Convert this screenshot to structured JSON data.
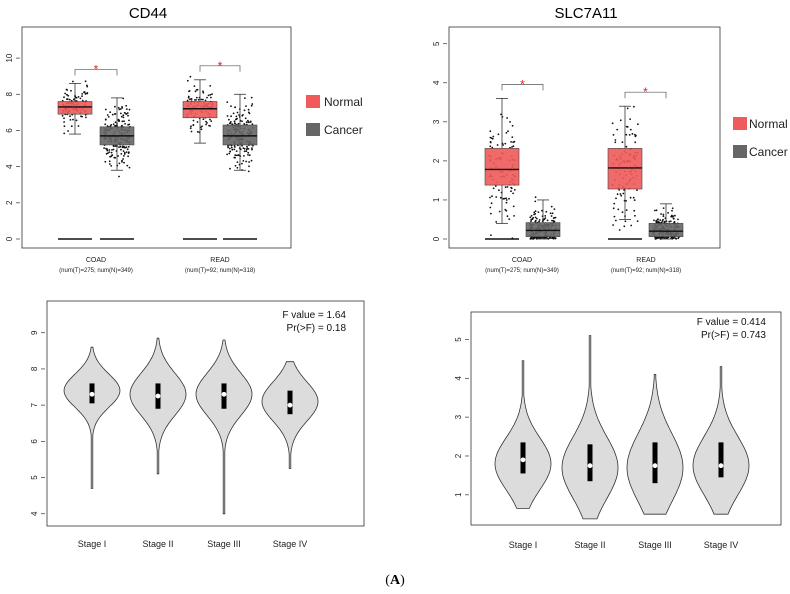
{
  "caption": {
    "open": "(",
    "letter": "A",
    "close": ")"
  },
  "colors": {
    "normal": "#f05a5a",
    "cancer": "#666666",
    "star": "#e02020",
    "violin": "#dcdcdc"
  },
  "chart_data": [
    {
      "type": "boxplot",
      "title": "CD44",
      "ylim": [
        0,
        11
      ],
      "yticks": [
        0,
        2,
        4,
        6,
        8,
        10
      ],
      "legend": [
        {
          "label": "Normal",
          "color": "#f05a5a"
        },
        {
          "label": "Cancer",
          "color": "#666666"
        }
      ],
      "legend_position": "right",
      "significance_marker": "*",
      "categories": [
        {
          "name": "COAD",
          "sub": "(num(T)=275; num(N)=349)",
          "normal": {
            "q1": 6.9,
            "median": 7.3,
            "q3": 7.6,
            "low": 5.8,
            "high": 8.6
          },
          "cancer": {
            "q1": 5.2,
            "median": 5.7,
            "q3": 6.2,
            "low": 3.8,
            "high": 7.8
          }
        },
        {
          "name": "READ",
          "sub": "(num(T)=92; num(N)=318)",
          "normal": {
            "q1": 6.7,
            "median": 7.2,
            "q3": 7.6,
            "low": 5.3,
            "high": 8.8
          },
          "cancer": {
            "q1": 5.2,
            "median": 5.7,
            "q3": 6.3,
            "low": 3.8,
            "high": 8.0
          }
        }
      ]
    },
    {
      "type": "boxplot",
      "title": "SLC7A11",
      "ylim": [
        0,
        5.3
      ],
      "yticks": [
        0,
        1,
        2,
        3,
        4,
        5
      ],
      "legend": [
        {
          "label": "Normal",
          "color": "#f05a5a"
        },
        {
          "label": "Cancer",
          "color": "#666666"
        }
      ],
      "legend_position": "right",
      "significance_marker": "*",
      "categories": [
        {
          "name": "COAD",
          "sub": "(num(T)=275; num(N)=349)",
          "normal": {
            "q1": 1.38,
            "median": 1.78,
            "q3": 2.32,
            "low": 0.4,
            "high": 3.6
          },
          "cancer": {
            "q1": 0.06,
            "median": 0.22,
            "q3": 0.42,
            "low": 0.0,
            "high": 1.0
          }
        },
        {
          "name": "READ",
          "sub": "(num(T)=92; num(N)=318)",
          "normal": {
            "q1": 1.28,
            "median": 1.82,
            "q3": 2.32,
            "low": 0.5,
            "high": 3.4
          },
          "cancer": {
            "q1": 0.06,
            "median": 0.2,
            "q3": 0.4,
            "low": 0.0,
            "high": 0.9
          }
        }
      ]
    },
    {
      "type": "violin",
      "ylim": [
        3.8,
        9.6
      ],
      "yticks": [
        4,
        5,
        6,
        7,
        8,
        9
      ],
      "f_value": "F value = 1.64",
      "p_value": "Pr(>F) = 0.18",
      "categories": [
        "Stage I",
        "Stage II",
        "Stage III",
        "Stage IV"
      ],
      "stages": [
        {
          "min": 4.7,
          "max": 8.6,
          "q1": 7.05,
          "median": 7.3,
          "q3": 7.6,
          "mode": 7.4
        },
        {
          "min": 5.1,
          "max": 8.85,
          "q1": 6.9,
          "median": 7.25,
          "q3": 7.6,
          "mode": 7.3
        },
        {
          "min": 4.0,
          "max": 8.8,
          "q1": 6.9,
          "median": 7.3,
          "q3": 7.6,
          "mode": 7.3
        },
        {
          "min": 5.25,
          "max": 8.2,
          "q1": 6.75,
          "median": 7.0,
          "q3": 7.4,
          "mode": 7.1
        }
      ]
    },
    {
      "type": "violin",
      "ylim": [
        0.3,
        5.45
      ],
      "yticks": [
        1,
        2,
        3,
        4,
        5
      ],
      "f_value": "F value = 0.414",
      "p_value": "Pr(>F) = 0.743",
      "categories": [
        "Stage I",
        "Stage II",
        "Stage III",
        "Stage IV"
      ],
      "stages": [
        {
          "min": 0.65,
          "max": 4.45,
          "q1": 1.55,
          "median": 1.9,
          "q3": 2.35,
          "mode": 1.8
        },
        {
          "min": 0.38,
          "max": 5.1,
          "q1": 1.35,
          "median": 1.75,
          "q3": 2.3,
          "mode": 1.7
        },
        {
          "min": 0.5,
          "max": 4.1,
          "q1": 1.3,
          "median": 1.75,
          "q3": 2.35,
          "mode": 1.7
        },
        {
          "min": 0.5,
          "max": 4.3,
          "q1": 1.45,
          "median": 1.75,
          "q3": 2.35,
          "mode": 1.75
        }
      ]
    }
  ]
}
